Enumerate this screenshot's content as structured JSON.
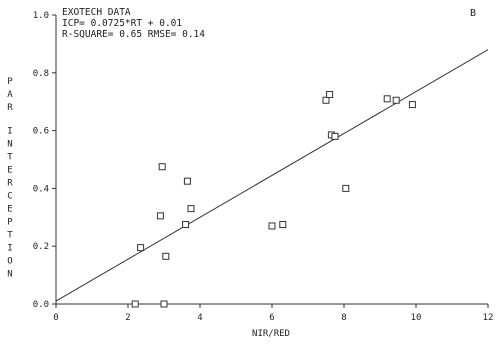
{
  "chart_data": {
    "type": "scatter",
    "panel_label": "B",
    "annotations": [
      "EXOTECH DATA",
      "ICP= 0.0725*RT + 0.01",
      "R-SQUARE= 0.65  RMSE= 0.14"
    ],
    "xlabel": "NIR/RED",
    "ylabel": "PAR INTERCEPTION",
    "xlim": [
      0,
      12
    ],
    "ylim": [
      0,
      1.0
    ],
    "xticks": [
      0,
      2,
      4,
      6,
      8,
      10,
      12
    ],
    "yticks": [
      0.0,
      0.2,
      0.4,
      0.6,
      0.8,
      1.0
    ],
    "xtick_labels": [
      "0",
      "2",
      "4",
      "6",
      "8",
      "10",
      "12"
    ],
    "ytick_labels": [
      "0.0",
      "0.2",
      "0.4",
      "0.6",
      "0.8",
      "1.0"
    ],
    "points": [
      {
        "x": 2.2,
        "y": 0.0
      },
      {
        "x": 2.35,
        "y": 0.195
      },
      {
        "x": 2.9,
        "y": 0.305
      },
      {
        "x": 2.95,
        "y": 0.475
      },
      {
        "x": 3.0,
        "y": 0.0
      },
      {
        "x": 3.05,
        "y": 0.165
      },
      {
        "x": 3.6,
        "y": 0.275
      },
      {
        "x": 3.65,
        "y": 0.425
      },
      {
        "x": 3.75,
        "y": 0.33
      },
      {
        "x": 6.0,
        "y": 0.27
      },
      {
        "x": 6.3,
        "y": 0.275
      },
      {
        "x": 7.5,
        "y": 0.705
      },
      {
        "x": 7.6,
        "y": 0.725
      },
      {
        "x": 7.65,
        "y": 0.585
      },
      {
        "x": 7.75,
        "y": 0.58
      },
      {
        "x": 8.05,
        "y": 0.4
      },
      {
        "x": 9.2,
        "y": 0.71
      },
      {
        "x": 9.45,
        "y": 0.705
      },
      {
        "x": 9.9,
        "y": 0.69
      }
    ],
    "fit_line": {
      "slope": 0.0725,
      "intercept": 0.01,
      "x_range": [
        0,
        12
      ]
    },
    "marker": "open-square",
    "grid": false
  }
}
